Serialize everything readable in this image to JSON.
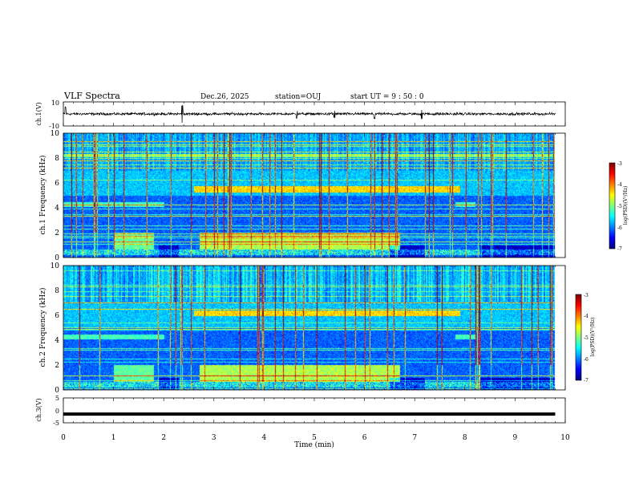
{
  "header": {
    "title": "VLF Spectra",
    "date": "Dec.26, 2025",
    "station": "station=OUJ",
    "start": "start  UT =  9 : 50 : 0"
  },
  "colors": {
    "background": "#ffffff",
    "axes": "#000000",
    "spectrogram_floor": "#00007f"
  },
  "chart_data": [
    {
      "type": "line",
      "name": "ch1-waveform",
      "ylabel": "ch.1(V)",
      "ylim": [
        -10,
        10
      ],
      "yticks": [
        "10",
        "-10"
      ],
      "xlim": [
        0,
        10
      ],
      "mean": 0,
      "noise_amplitude": 1.6,
      "spikes": [
        {
          "t": 0.04,
          "amp": 6
        },
        {
          "t": 2.37,
          "amp": 7
        },
        {
          "t": 4.65,
          "amp": 3
        },
        {
          "t": 5.4,
          "amp": 3
        },
        {
          "t": 6.2,
          "amp": 3.5
        },
        {
          "t": 7.14,
          "amp": 4
        }
      ]
    },
    {
      "type": "heatmap",
      "name": "ch1-spectrogram",
      "ylabel": "ch.1  Frequency  (kHz)",
      "xlim": [
        0,
        10
      ],
      "ylim": [
        0,
        10
      ],
      "yticks": [
        "0",
        "2",
        "4",
        "6",
        "8",
        "10"
      ],
      "colorbar": {
        "label": "log(PSD)(V²/Hz)",
        "range": [
          -7,
          -3
        ],
        "ticks": [
          "-3",
          "-4",
          "-5",
          "-6",
          "-7"
        ]
      },
      "end_time_min": 9.8
    },
    {
      "type": "heatmap",
      "name": "ch2-spectrogram",
      "ylabel": "ch.2  Frequency  (kHz)",
      "xlim": [
        0,
        10
      ],
      "ylim": [
        0,
        10
      ],
      "yticks": [
        "0",
        "2",
        "4",
        "6",
        "8",
        "10"
      ],
      "colorbar": {
        "label": "log(PSD)(V²/Hz)",
        "range": [
          -7,
          -3
        ],
        "ticks": [
          "-3",
          "-4",
          "-5",
          "-6",
          "-7"
        ]
      },
      "end_time_min": 9.8
    },
    {
      "type": "line",
      "name": "ch3-waveform",
      "ylabel": "ch.3(V)",
      "ylim": [
        -5,
        5
      ],
      "yticks": [
        "5",
        "0",
        "-5"
      ],
      "xlim": [
        0,
        10
      ],
      "level": -1.5
    }
  ],
  "xaxis": {
    "label": "Time  (min)",
    "ticks": [
      "0",
      "1",
      "2",
      "3",
      "4",
      "5",
      "6",
      "7",
      "8",
      "9",
      "10"
    ]
  }
}
